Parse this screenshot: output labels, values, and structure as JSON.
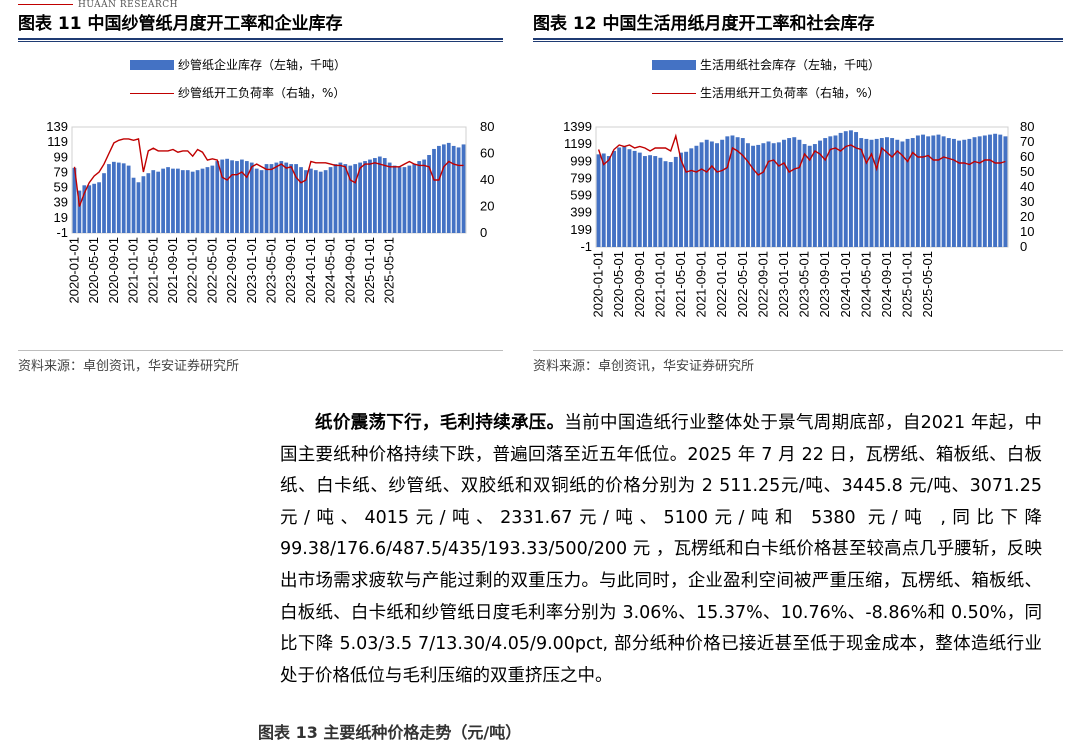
{
  "header": {
    "brand": "HUAAN RESEARCH"
  },
  "figure11": {
    "title": "图表 11 中国纱管纸月度开工率和企业库存",
    "source": "资料来源：卓创资讯，华安证券研究所",
    "chart_data": {
      "type": "bar+line",
      "legend": [
        "纱管纸企业库存（左轴，千吨）",
        "纱管纸开工负荷率（右轴，%）"
      ],
      "left_ticks": [
        "139",
        "119",
        "99",
        "79",
        "59",
        "39",
        "19",
        "-1"
      ],
      "right_ticks": [
        "80",
        "60",
        "40",
        "20",
        "0"
      ],
      "ylim_left": [
        -1,
        139
      ],
      "ylim_right": [
        0,
        80
      ],
      "x_ticks": [
        "2020-01-01",
        "2020-05-01",
        "2020-09-01",
        "2021-01-01",
        "2021-05-01",
        "2021-09-01",
        "2022-01-01",
        "2022-05-01",
        "2022-09-01",
        "2023-01-01",
        "2023-05-01",
        "2023-09-01",
        "2024-01-01",
        "2024-05-01",
        "2024-09-01",
        "2025-01-01",
        "2025-05-01"
      ],
      "x_start": "2020-01",
      "series": [
        {
          "name": "纱管纸企业库存（左轴，千吨）",
          "type": "bar",
          "values": [
            85,
            55,
            62,
            62,
            64,
            66,
            78,
            90,
            93,
            92,
            91,
            88,
            72,
            66,
            74,
            78,
            82,
            80,
            84,
            86,
            84,
            84,
            82,
            82,
            80,
            82,
            84,
            86,
            88,
            94,
            96,
            97,
            95,
            94,
            96,
            94,
            92,
            84,
            82,
            90,
            90,
            92,
            94,
            92,
            90,
            90,
            86,
            82,
            84,
            82,
            80,
            82,
            86,
            90,
            92,
            90,
            88,
            90,
            92,
            94,
            96,
            98,
            100,
            98,
            92,
            88,
            86,
            86,
            88,
            90,
            94,
            96,
            102,
            110,
            114,
            116,
            118,
            114,
            112,
            116
          ]
        },
        {
          "name": "纱管纸开工负荷率（右轴，%）",
          "type": "line",
          "values": [
            50,
            20,
            30,
            38,
            43,
            46,
            52,
            60,
            68,
            70,
            71,
            71,
            70,
            71,
            46,
            62,
            64,
            62,
            62,
            62,
            63,
            61,
            62,
            62,
            58,
            63,
            61,
            55,
            56,
            55,
            42,
            40,
            44,
            44,
            46,
            42,
            50,
            52,
            50,
            48,
            48,
            50,
            52,
            49,
            50,
            42,
            38,
            40,
            54,
            53,
            53,
            53,
            52,
            51,
            51,
            50,
            40,
            38,
            49,
            52,
            52,
            53,
            52,
            51,
            50,
            50,
            50,
            52,
            54,
            52,
            51,
            51,
            50,
            40,
            40,
            50,
            54,
            52,
            51,
            51
          ]
        }
      ]
    }
  },
  "figure12": {
    "title": "图表 12 中国生活用纸月度开工率和社会库存",
    "source": "资料来源：卓创资讯，华安证券研究所",
    "chart_data": {
      "type": "bar+line",
      "legend": [
        "生活用纸社会库存（左轴，千吨）",
        "生活用纸开工负荷率（右轴，%）"
      ],
      "left_ticks": [
        "1399",
        "1199",
        "999",
        "799",
        "599",
        "399",
        "199",
        "-1"
      ],
      "right_ticks": [
        "80",
        "70",
        "60",
        "50",
        "40",
        "30",
        "20",
        "10",
        "0"
      ],
      "ylim_left": [
        -1,
        1399
      ],
      "ylim_right": [
        0,
        80
      ],
      "x_ticks": [
        "2020-01-01",
        "2020-05-01",
        "2020-09-01",
        "2021-01-01",
        "2021-05-01",
        "2021-09-01",
        "2022-01-01",
        "2022-05-01",
        "2022-09-01",
        "2023-01-01",
        "2023-05-01",
        "2023-09-01",
        "2024-01-01",
        "2024-05-01",
        "2024-09-01",
        "2025-01-01",
        "2025-05-01"
      ],
      "x_start": "2020-01",
      "series": [
        {
          "name": "生活用纸社会库存（左轴，千吨）",
          "type": "bar",
          "values": [
            1080,
            1090,
            1060,
            1120,
            1160,
            1170,
            1140,
            1120,
            1100,
            1060,
            1070,
            1060,
            1040,
            1000,
            990,
            1050,
            1100,
            1110,
            1150,
            1180,
            1220,
            1250,
            1230,
            1210,
            1250,
            1290,
            1300,
            1280,
            1270,
            1210,
            1180,
            1190,
            1210,
            1230,
            1210,
            1220,
            1250,
            1270,
            1280,
            1250,
            1200,
            1180,
            1200,
            1240,
            1270,
            1290,
            1300,
            1330,
            1350,
            1360,
            1340,
            1270,
            1260,
            1250,
            1260,
            1270,
            1280,
            1270,
            1250,
            1230,
            1260,
            1270,
            1300,
            1310,
            1290,
            1300,
            1310,
            1290,
            1270,
            1260,
            1240,
            1250,
            1260,
            1280,
            1290,
            1300,
            1310,
            1320,
            1310,
            1290
          ]
        },
        {
          "name": "生活用纸开工负荷率（右轴，%）",
          "type": "line",
          "values": [
            65,
            55,
            58,
            65,
            68,
            67,
            68,
            66,
            67,
            66,
            64,
            66,
            66,
            66,
            64,
            74,
            58,
            50,
            51,
            50,
            52,
            50,
            54,
            50,
            51,
            53,
            66,
            64,
            61,
            57,
            52,
            48,
            50,
            57,
            58,
            54,
            56,
            50,
            52,
            53,
            62,
            58,
            64,
            62,
            58,
            65,
            66,
            64,
            67,
            68,
            66,
            65,
            56,
            62,
            52,
            66,
            63,
            60,
            64,
            61,
            57,
            63,
            60,
            60,
            61,
            58,
            58,
            60,
            59,
            58,
            56,
            56,
            55,
            57,
            56,
            58,
            58,
            56,
            56,
            57
          ]
        }
      ]
    }
  },
  "article": {
    "lead": "纸价震荡下行，毛利持续承压。",
    "body": "当前中国造纸行业整体处于景气周期底部，自2021 年起，中国主要纸种价格持续下跌，普遍回落至近五年低位。2025 年 7 月 22 日，瓦楞纸、箱板纸、白板纸、白卡纸、纱管纸、双胶纸和双铜纸的价格分别为 2 511.25元/吨、3445.8 元/吨、3071.25 元/吨、4015元/吨、2331.67元/吨、5100元/吨和 5380 元/吨 ,同比下降 99.38/176.6/487.5/435/193.33/500/200 元 ，瓦楞纸和白卡纸价格甚至较高点几乎腰斩，反映出市场需求疲软与产能过剩的双重压力。与此同时，企业盈利空间被严重压缩，瓦楞纸、箱板纸、白板纸、白卡纸和纱管纸日度毛利率分别为 3.06%、15.37%、10.76%、-8.86%和 0.50%，同比下降 5.03/3.5 7/13.30/4.05/9.00pct, 部分纸种价格已接近甚至低于现金成本，整体造纸行业处于价格低位与毛利压缩的双重挤压之中。",
    "next_caption_cut": "图表 13 主要纸种价格走势（元/吨）"
  }
}
